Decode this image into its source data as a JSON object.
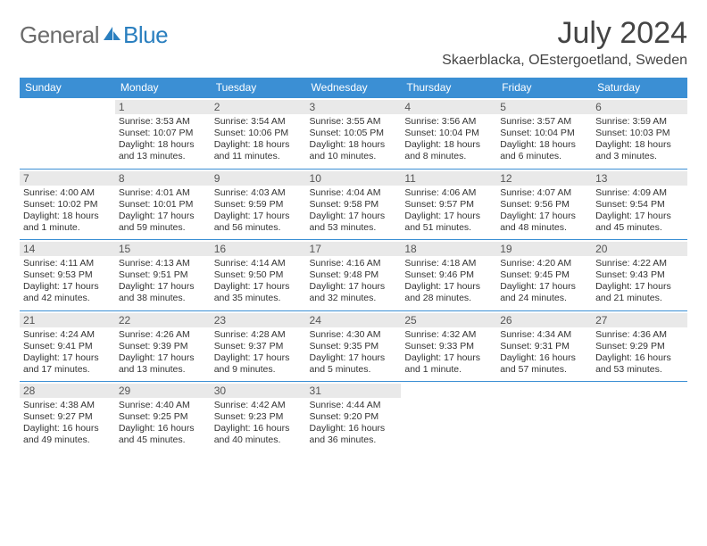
{
  "logo": {
    "text1": "General",
    "text2": "Blue"
  },
  "title": "July 2024",
  "location": "Skaerblacka, OEstergoetland, Sweden",
  "colors": {
    "header_bg": "#3b8fd4",
    "header_fg": "#ffffff",
    "daynum_bg": "#e9e9e9",
    "border": "#3b8fd4",
    "logo_gray": "#6b6b6b",
    "logo_blue": "#2a7fbf"
  },
  "weekdays": [
    "Sunday",
    "Monday",
    "Tuesday",
    "Wednesday",
    "Thursday",
    "Friday",
    "Saturday"
  ],
  "weeks": [
    [
      {
        "empty": true
      },
      {
        "n": "1",
        "sunrise": "3:53 AM",
        "sunset": "10:07 PM",
        "daylight": "18 hours and 13 minutes."
      },
      {
        "n": "2",
        "sunrise": "3:54 AM",
        "sunset": "10:06 PM",
        "daylight": "18 hours and 11 minutes."
      },
      {
        "n": "3",
        "sunrise": "3:55 AM",
        "sunset": "10:05 PM",
        "daylight": "18 hours and 10 minutes."
      },
      {
        "n": "4",
        "sunrise": "3:56 AM",
        "sunset": "10:04 PM",
        "daylight": "18 hours and 8 minutes."
      },
      {
        "n": "5",
        "sunrise": "3:57 AM",
        "sunset": "10:04 PM",
        "daylight": "18 hours and 6 minutes."
      },
      {
        "n": "6",
        "sunrise": "3:59 AM",
        "sunset": "10:03 PM",
        "daylight": "18 hours and 3 minutes."
      }
    ],
    [
      {
        "n": "7",
        "sunrise": "4:00 AM",
        "sunset": "10:02 PM",
        "daylight": "18 hours and 1 minute."
      },
      {
        "n": "8",
        "sunrise": "4:01 AM",
        "sunset": "10:01 PM",
        "daylight": "17 hours and 59 minutes."
      },
      {
        "n": "9",
        "sunrise": "4:03 AM",
        "sunset": "9:59 PM",
        "daylight": "17 hours and 56 minutes."
      },
      {
        "n": "10",
        "sunrise": "4:04 AM",
        "sunset": "9:58 PM",
        "daylight": "17 hours and 53 minutes."
      },
      {
        "n": "11",
        "sunrise": "4:06 AM",
        "sunset": "9:57 PM",
        "daylight": "17 hours and 51 minutes."
      },
      {
        "n": "12",
        "sunrise": "4:07 AM",
        "sunset": "9:56 PM",
        "daylight": "17 hours and 48 minutes."
      },
      {
        "n": "13",
        "sunrise": "4:09 AM",
        "sunset": "9:54 PM",
        "daylight": "17 hours and 45 minutes."
      }
    ],
    [
      {
        "n": "14",
        "sunrise": "4:11 AM",
        "sunset": "9:53 PM",
        "daylight": "17 hours and 42 minutes."
      },
      {
        "n": "15",
        "sunrise": "4:13 AM",
        "sunset": "9:51 PM",
        "daylight": "17 hours and 38 minutes."
      },
      {
        "n": "16",
        "sunrise": "4:14 AM",
        "sunset": "9:50 PM",
        "daylight": "17 hours and 35 minutes."
      },
      {
        "n": "17",
        "sunrise": "4:16 AM",
        "sunset": "9:48 PM",
        "daylight": "17 hours and 32 minutes."
      },
      {
        "n": "18",
        "sunrise": "4:18 AM",
        "sunset": "9:46 PM",
        "daylight": "17 hours and 28 minutes."
      },
      {
        "n": "19",
        "sunrise": "4:20 AM",
        "sunset": "9:45 PM",
        "daylight": "17 hours and 24 minutes."
      },
      {
        "n": "20",
        "sunrise": "4:22 AM",
        "sunset": "9:43 PM",
        "daylight": "17 hours and 21 minutes."
      }
    ],
    [
      {
        "n": "21",
        "sunrise": "4:24 AM",
        "sunset": "9:41 PM",
        "daylight": "17 hours and 17 minutes."
      },
      {
        "n": "22",
        "sunrise": "4:26 AM",
        "sunset": "9:39 PM",
        "daylight": "17 hours and 13 minutes."
      },
      {
        "n": "23",
        "sunrise": "4:28 AM",
        "sunset": "9:37 PM",
        "daylight": "17 hours and 9 minutes."
      },
      {
        "n": "24",
        "sunrise": "4:30 AM",
        "sunset": "9:35 PM",
        "daylight": "17 hours and 5 minutes."
      },
      {
        "n": "25",
        "sunrise": "4:32 AM",
        "sunset": "9:33 PM",
        "daylight": "17 hours and 1 minute."
      },
      {
        "n": "26",
        "sunrise": "4:34 AM",
        "sunset": "9:31 PM",
        "daylight": "16 hours and 57 minutes."
      },
      {
        "n": "27",
        "sunrise": "4:36 AM",
        "sunset": "9:29 PM",
        "daylight": "16 hours and 53 minutes."
      }
    ],
    [
      {
        "n": "28",
        "sunrise": "4:38 AM",
        "sunset": "9:27 PM",
        "daylight": "16 hours and 49 minutes."
      },
      {
        "n": "29",
        "sunrise": "4:40 AM",
        "sunset": "9:25 PM",
        "daylight": "16 hours and 45 minutes."
      },
      {
        "n": "30",
        "sunrise": "4:42 AM",
        "sunset": "9:23 PM",
        "daylight": "16 hours and 40 minutes."
      },
      {
        "n": "31",
        "sunrise": "4:44 AM",
        "sunset": "9:20 PM",
        "daylight": "16 hours and 36 minutes."
      },
      {
        "empty": true
      },
      {
        "empty": true
      },
      {
        "empty": true
      }
    ]
  ],
  "labels": {
    "sunrise": "Sunrise:",
    "sunset": "Sunset:",
    "daylight": "Daylight:"
  }
}
